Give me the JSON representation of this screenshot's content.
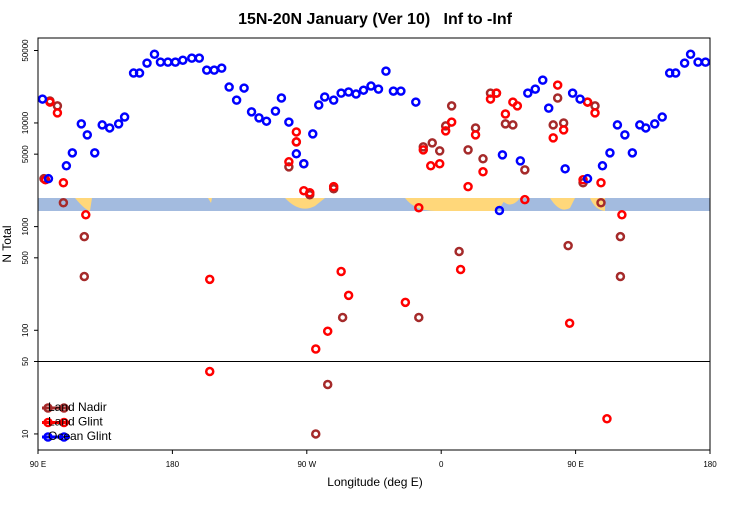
{
  "chart_data": {
    "type": "scatter",
    "title": "15N-20N January (Ver 10)   Inf to -Inf",
    "x_label": "Longitude (deg E)",
    "y_label": "N Total",
    "xlim": [
      90,
      540
    ],
    "xticks": [
      {
        "value": 90,
        "label": "90 E"
      },
      {
        "value": 180,
        "label": "180"
      },
      {
        "value": 270,
        "label": "90 W"
      },
      {
        "value": 360,
        "label": "0"
      },
      {
        "value": 450,
        "label": "90 E"
      },
      {
        "value": 540,
        "label": "180"
      }
    ],
    "ylim": [
      7,
      66000
    ],
    "yticks": [
      10,
      50,
      100,
      500,
      1000,
      5000,
      10000,
      50000
    ],
    "log_y": true,
    "hline": 50,
    "legend": "lower left",
    "series": [
      {
        "name": "Land Nadir",
        "color": "#a52a2a",
        "x": [
          94,
          98,
          103,
          107,
          121,
          121,
          258,
          263,
          268,
          272,
          276,
          284,
          288,
          294,
          345,
          348,
          354,
          359,
          363,
          367,
          372,
          378,
          383,
          388,
          393,
          397,
          403,
          408,
          416,
          435,
          438,
          442,
          445,
          455,
          458,
          463,
          467,
          480,
          480
        ],
        "values": [
          2900,
          16300,
          14600,
          1700,
          800,
          330,
          3770,
          6560,
          4040,
          2030,
          10,
          30,
          2320,
          133,
          133,
          5880,
          6420,
          5380,
          9360,
          14600,
          575,
          5500,
          8950,
          4510,
          19400,
          19400,
          9800,
          9570,
          3530,
          9570,
          17400,
          10000,
          656,
          2650,
          15900,
          14600,
          1700,
          800,
          330
        ]
      },
      {
        "name": "Land Glint",
        "color": "#ff0000",
        "x": [
          95,
          98,
          103,
          107,
          122,
          205,
          205,
          258,
          263,
          263,
          268,
          272,
          276,
          284,
          288,
          293,
          298,
          336,
          345,
          348,
          353,
          359,
          363,
          367,
          373,
          378,
          383,
          388,
          393,
          397,
          403,
          408,
          411,
          416,
          435,
          438,
          442,
          446,
          455,
          458,
          463,
          467,
          471,
          481
        ],
        "values": [
          2830,
          15900,
          12500,
          2650,
          1300,
          310,
          40,
          4220,
          8190,
          6560,
          2220,
          2120,
          66,
          98,
          2430,
          369,
          217,
          186,
          1520,
          5500,
          3860,
          4040,
          8380,
          10200,
          386,
          2430,
          7670,
          3380,
          17000,
          19400,
          12200,
          15900,
          14600,
          1820,
          7180,
          23200,
          8570,
          117,
          2830,
          15900,
          12500,
          2650,
          14,
          1300
        ]
      },
      {
        "name": "Ocean Glint",
        "color": "#0000ff",
        "x": [
          93,
          97,
          109,
          113,
          119,
          123,
          128,
          133,
          138,
          144,
          148,
          154,
          158,
          163,
          168,
          172,
          177,
          182,
          187,
          193,
          198,
          203,
          208,
          213,
          218,
          223,
          228,
          233,
          238,
          243,
          249,
          253,
          258,
          263,
          268,
          274,
          278,
          282,
          288,
          293,
          298,
          303,
          308,
          313,
          318,
          323,
          328,
          333,
          343,
          399,
          401,
          413,
          418,
          423,
          428,
          432,
          443,
          448,
          453,
          458,
          468,
          473,
          478,
          483,
          488,
          493,
          497,
          503,
          508,
          513,
          517,
          523,
          527,
          532,
          537
        ],
        "values": [
          17000,
          2900,
          3860,
          5150,
          9800,
          7670,
          5150,
          9570,
          8950,
          9800,
          11400,
          30300,
          30300,
          37800,
          46000,
          38600,
          38600,
          38600,
          40300,
          42200,
          42200,
          32300,
          32300,
          33800,
          22200,
          16600,
          21700,
          12800,
          11200,
          10400,
          13000,
          17400,
          10200,
          5040,
          4040,
          7840,
          14900,
          17800,
          16600,
          19400,
          19900,
          19000,
          20700,
          22700,
          21200,
          31600,
          20300,
          20300,
          15900,
          1430,
          4920,
          4310,
          19400,
          21200,
          25900,
          13900,
          3610,
          19400,
          17000,
          2900,
          3860,
          5150,
          9570,
          7670,
          5150,
          9570,
          8950,
          9800,
          11400,
          30300,
          30300,
          37800,
          46000,
          38600,
          38600
        ]
      }
    ]
  }
}
